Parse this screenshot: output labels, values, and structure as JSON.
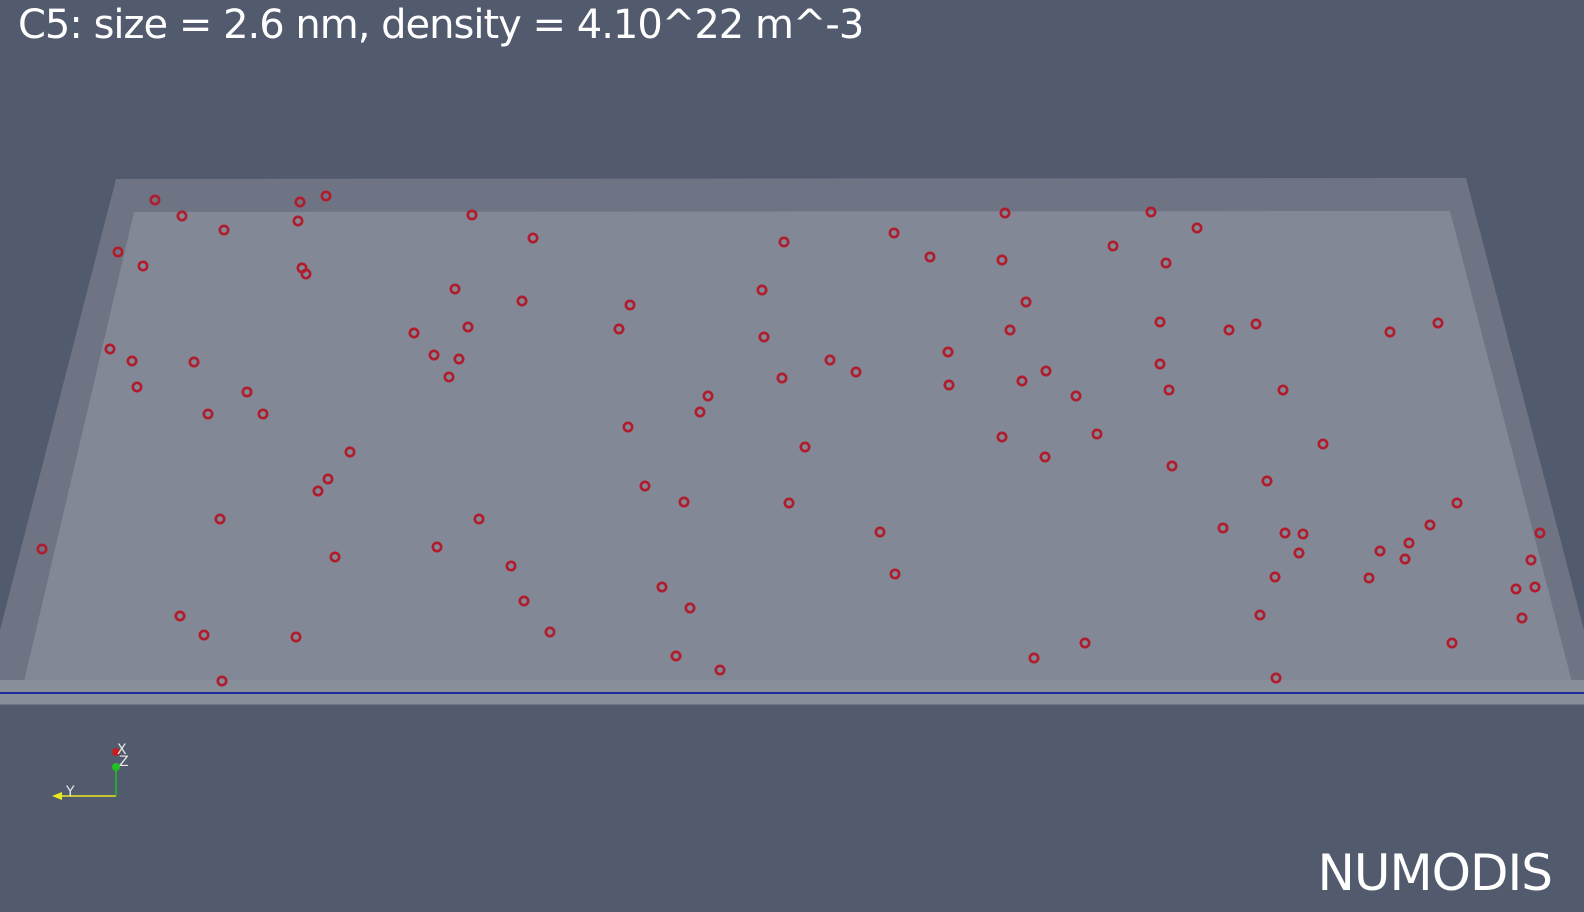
{
  "title": "C5: size = 2.6 nm, density = 4.10^22 m^-3",
  "brand": "NUMODIS",
  "orientation_axes": {
    "x_label": "X",
    "y_label": "Y",
    "z_label": "Z",
    "x_color": "#c02020",
    "y_color": "#e8e820",
    "z_color": "#20c020"
  },
  "colors": {
    "background": "#525a6e",
    "box_outer": "#6f7485",
    "box_inner": "#838896",
    "cluster": "#b01c2c",
    "edge_line": "#1e2a9a"
  }
}
